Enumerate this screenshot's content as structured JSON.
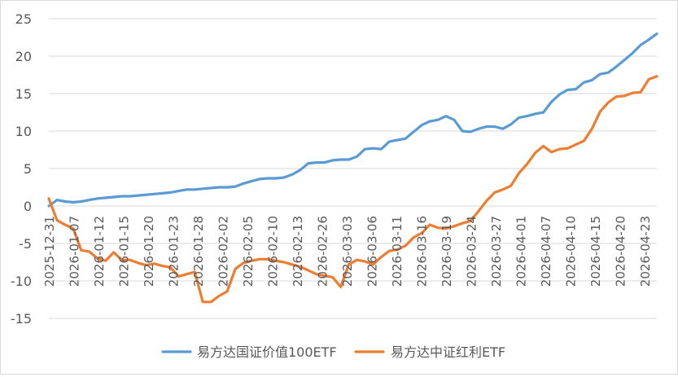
{
  "chart_data": {
    "type": "line",
    "title": "",
    "xlabel": "",
    "ylabel": "",
    "ylim": [
      -15,
      25
    ],
    "yticks": [
      -15,
      -10,
      -5,
      0,
      5,
      10,
      15,
      20,
      25
    ],
    "grid": "horizontal",
    "legend": "bottom",
    "x_tick_labels": [
      "2025-12-31",
      "2026-01-07",
      "2026-01-12",
      "2026-01-15",
      "2026-01-20",
      "2026-01-23",
      "2026-01-28",
      "2026-02-02",
      "2026-02-05",
      "2026-02-10",
      "2026-02-13",
      "2026-02-26",
      "2026-03-03",
      "2026-03-06",
      "2026-03-11",
      "2026-03-16",
      "2026-03-19",
      "2026-03-24",
      "2026-03-27",
      "2026-04-01",
      "2026-04-07",
      "2026-04-10",
      "2026-04-15",
      "2026-04-20",
      "2026-04-23"
    ],
    "series": [
      {
        "name": "易方达国证价值100ETF",
        "color": "#5B9BD5",
        "values": [
          0.0,
          0.8,
          0.6,
          0.5,
          0.6,
          0.8,
          1.0,
          1.1,
          1.2,
          1.3,
          1.3,
          1.4,
          1.5,
          1.6,
          1.7,
          1.8,
          2.0,
          2.2,
          2.2,
          2.3,
          2.4,
          2.5,
          2.5,
          2.6,
          3.0,
          3.3,
          3.6,
          3.7,
          3.7,
          3.8,
          4.2,
          4.8,
          5.7,
          5.8,
          5.8,
          6.1,
          6.2,
          6.2,
          6.6,
          7.6,
          7.7,
          7.6,
          8.6,
          8.8,
          9.0,
          9.9,
          10.8,
          11.3,
          11.5,
          12.0,
          11.5,
          10.0,
          9.9,
          10.3,
          10.6,
          10.6,
          10.3,
          10.9,
          11.8,
          12.0,
          12.3,
          12.5,
          13.9,
          14.9,
          15.5,
          15.6,
          16.5,
          16.8,
          17.6,
          17.8,
          18.6,
          19.5,
          20.4,
          21.5,
          22.2,
          23.0
        ]
      },
      {
        "name": "易方达中证红利ETF",
        "color": "#ED7D31",
        "values": [
          1.0,
          -1.9,
          -2.5,
          -3.0,
          -5.9,
          -6.1,
          -7.0,
          -7.3,
          -6.2,
          -7.2,
          -7.2,
          -7.6,
          -7.9,
          -7.7,
          -8.0,
          -8.2,
          -9.4,
          -9.1,
          -8.8,
          -12.8,
          -12.8,
          -12.0,
          -11.4,
          -8.4,
          -7.6,
          -7.3,
          -7.1,
          -7.1,
          -7.3,
          -7.5,
          -7.8,
          -8.1,
          -8.6,
          -9.1,
          -9.3,
          -9.5,
          -10.8,
          -7.8,
          -7.2,
          -7.4,
          -7.8,
          -6.8,
          -6.0,
          -5.8,
          -5.3,
          -4.2,
          -3.6,
          -2.5,
          -2.9,
          -3.0,
          -2.7,
          -2.3,
          -2.0,
          -0.7,
          0.7,
          1.8,
          2.2,
          2.7,
          4.4,
          5.6,
          7.1,
          8.0,
          7.2,
          7.6,
          7.7,
          8.2,
          8.7,
          10.3,
          12.6,
          13.8,
          14.6,
          14.7,
          15.1,
          15.2,
          16.9,
          17.3
        ]
      }
    ]
  }
}
